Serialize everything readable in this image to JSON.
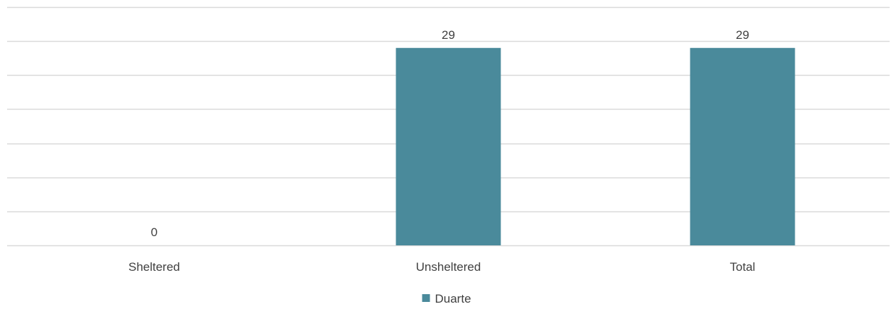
{
  "chart_data": {
    "type": "bar",
    "categories": [
      "Sheltered",
      "Unsheltered",
      "Total"
    ],
    "series": [
      {
        "name": "Duarte",
        "values": [
          0,
          29,
          29
        ],
        "color": "#4a8a9b"
      }
    ],
    "data_labels": [
      "0",
      "29",
      "29"
    ],
    "ylim": [
      0,
      35
    ],
    "y_gridline_step": 5,
    "grid": true,
    "legend_position": "bottom-center",
    "colors": {
      "bar": "#4a8a9b",
      "gridline": "#d9d9d9",
      "axis_line": "#d9d9d9",
      "text": "#404040"
    }
  }
}
